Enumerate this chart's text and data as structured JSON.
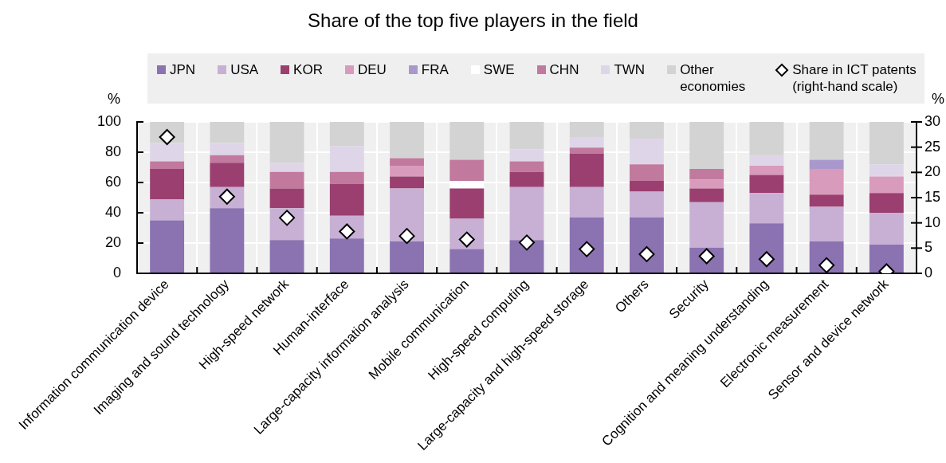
{
  "chart_data": {
    "type": "bar",
    "title": "Share of the top five players in the field",
    "ylabel": "%",
    "y2label": "%",
    "categories": [
      "Information communication device",
      "Imaging and sound technology",
      "High-speed network",
      "Human-interface",
      "Large-capacity information analysis",
      "Mobile communication",
      "High-speed computing",
      "Large-capacity and high-speed storage",
      "Others",
      "Security",
      "Cognition and meaning understanding",
      "Electronic measurement",
      "Sensor and device network"
    ],
    "stacked": true,
    "ylim": [
      0,
      100
    ],
    "yticks": [
      0,
      20,
      40,
      60,
      80,
      100
    ],
    "y2lim": [
      0,
      30
    ],
    "y2ticks": [
      0,
      5,
      10,
      15,
      20,
      25,
      30
    ],
    "grid": true,
    "legend": "top",
    "marker": "diamond",
    "series": [
      {
        "name": "JPN",
        "color": "#8b72b1",
        "values": [
          35,
          43,
          22,
          23,
          21,
          16,
          22,
          37,
          37,
          17,
          33,
          21,
          19
        ]
      },
      {
        "name": "USA",
        "color": "#c8b0d5",
        "values": [
          14,
          14,
          21,
          15,
          35,
          20,
          35,
          20,
          17,
          30,
          20,
          23,
          21
        ]
      },
      {
        "name": "KOR",
        "color": "#9b3f70",
        "values": [
          20,
          16,
          13,
          21,
          8,
          20,
          10,
          22,
          7,
          9,
          12,
          8,
          13
        ]
      },
      {
        "name": "DEU",
        "color": "#d99bbb",
        "values": [
          null,
          null,
          null,
          null,
          7,
          null,
          null,
          null,
          null,
          6,
          6,
          17,
          11
        ]
      },
      {
        "name": "FRA",
        "color": "#a998cc",
        "values": [
          null,
          null,
          null,
          null,
          null,
          null,
          null,
          null,
          null,
          null,
          null,
          6,
          null
        ]
      },
      {
        "name": "SWE",
        "color": "#ffffff",
        "values": [
          null,
          null,
          null,
          null,
          null,
          5,
          null,
          null,
          null,
          null,
          null,
          null,
          null
        ]
      },
      {
        "name": "CHN",
        "color": "#c17a9e",
        "values": [
          5,
          5,
          11,
          8,
          5,
          14,
          7,
          4,
          11,
          7,
          null,
          null,
          null
        ]
      },
      {
        "name": "TWN",
        "color": "#ded6e8",
        "values": [
          12,
          8,
          6,
          17,
          null,
          null,
          8,
          7,
          17,
          null,
          7,
          null,
          8
        ]
      },
      {
        "name": "Other economies",
        "color": "#d3d3d3",
        "values": [
          14,
          14,
          27,
          16,
          24,
          25,
          18,
          10,
          11,
          31,
          22,
          25,
          28
        ]
      },
      {
        "name": "Share in ICT patents (right-hand scale)",
        "type": "scatter",
        "axis": "y2",
        "color": "#ffffff",
        "x": [
          "Information communication device",
          "Imaging and sound technology",
          "High-speed network",
          "Human-interface",
          "Large-capacity information analysis",
          "Mobile communication",
          "High-speed computing",
          "Large-capacity and high-speed storage",
          "Others",
          "Security",
          "Cognition and meaning understanding",
          "Electronic measurement",
          "Sensor and device network"
        ],
        "values": [
          27,
          15.2,
          11,
          8.3,
          7.4,
          6.7,
          6.1,
          4.8,
          3.8,
          3.4,
          2.8,
          1.6,
          0.4
        ]
      }
    ]
  }
}
